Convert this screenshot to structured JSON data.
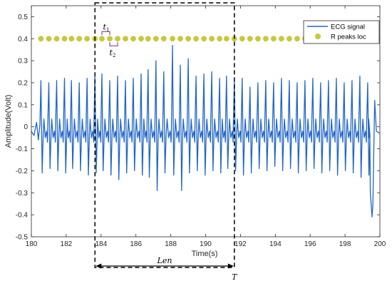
{
  "chart_data": {
    "type": "line",
    "xlabel": "Time(s)",
    "ylabel": "Amplitude(Volt)",
    "xlim": [
      180,
      200
    ],
    "ylim": [
      -0.5,
      0.55
    ],
    "xticks": [
      180,
      182,
      184,
      186,
      188,
      190,
      192,
      194,
      196,
      198,
      200
    ],
    "xtick_labels": [
      "180",
      "182",
      "184",
      "186",
      "188",
      "190",
      "192",
      "194",
      "196",
      "198",
      "200"
    ],
    "yticks": [
      -0.5,
      -0.4,
      -0.3,
      -0.2,
      -0.1,
      0,
      0.1,
      0.2,
      0.3,
      0.4,
      0.5
    ],
    "ytick_labels": [
      "-0.5",
      "-0.4",
      "-0.3",
      "-0.2",
      "-0.1",
      "0",
      "0.1",
      "0.2",
      "0.3",
      "0.4",
      "0.5"
    ],
    "legend_position": "top-right",
    "series": [
      {
        "name": "ECG signal",
        "kind": "line",
        "color": "#2166c8",
        "r_peak_times": [
          180.55,
          181.0,
          181.45,
          181.9,
          182.3,
          182.75,
          183.2,
          183.65,
          184.05,
          184.5,
          184.95,
          185.4,
          185.85,
          186.3,
          186.7,
          187.15,
          187.6,
          188.1,
          188.55,
          189.0,
          189.45,
          189.9,
          190.35,
          190.8,
          191.2,
          191.65,
          192.1,
          192.55,
          193.0,
          193.45,
          193.9,
          194.35,
          194.8,
          195.25,
          195.7,
          196.15,
          196.6,
          197.05,
          197.5,
          197.95,
          198.4,
          198.85,
          199.3
        ],
        "r_peak_values": [
          0.21,
          0.2,
          0.21,
          0.22,
          0.21,
          0.2,
          0.22,
          0.23,
          0.24,
          0.21,
          0.23,
          0.21,
          0.22,
          0.24,
          0.26,
          0.3,
          0.25,
          0.37,
          0.28,
          0.31,
          0.23,
          0.24,
          0.25,
          0.22,
          0.23,
          0.21,
          0.22,
          0.18,
          0.2,
          0.21,
          0.2,
          0.22,
          0.21,
          0.2,
          0.21,
          0.22,
          0.2,
          0.21,
          0.22,
          0.2,
          0.21,
          0.23,
          0.2
        ],
        "trough_values": [
          -0.21,
          -0.19,
          -0.2,
          -0.21,
          -0.19,
          -0.2,
          -0.22,
          -0.21,
          -0.2,
          -0.22,
          -0.24,
          -0.21,
          -0.2,
          -0.22,
          -0.23,
          -0.29,
          -0.21,
          -0.22,
          -0.29,
          -0.21,
          -0.2,
          -0.22,
          -0.2,
          -0.21,
          -0.19,
          -0.2,
          -0.22,
          -0.21,
          -0.19,
          -0.2,
          -0.18,
          -0.2,
          -0.19,
          -0.21,
          -0.2,
          -0.19,
          -0.21,
          -0.2,
          -0.22,
          -0.2,
          -0.21,
          -0.23,
          -0.22
        ],
        "end_segment": {
          "x": [
            199.45,
            199.55,
            199.6,
            199.7,
            199.8,
            200.0
          ],
          "y": [
            -0.3,
            -0.41,
            -0.35,
            0.12,
            -0.02,
            -0.03
          ]
        }
      },
      {
        "name": "R peaks loc",
        "kind": "scatter",
        "color": "#c8c83c",
        "y": 0.4,
        "x": [
          180.55,
          181.0,
          181.45,
          181.9,
          182.3,
          182.75,
          183.2,
          183.65,
          184.05,
          184.5,
          184.95,
          185.4,
          185.85,
          186.3,
          186.7,
          187.15,
          187.6,
          188.1,
          188.55,
          189.0,
          189.45,
          189.9,
          190.35,
          190.8,
          191.2,
          191.65,
          192.1,
          192.55,
          193.0,
          193.45,
          193.9,
          194.35,
          194.8,
          195.25,
          195.7,
          196.15,
          196.6,
          197.05,
          197.5,
          197.95,
          198.4,
          198.85,
          199.3
        ]
      }
    ],
    "window_box": {
      "x_start": 183.65,
      "x_end": 191.65,
      "style": "dashed"
    },
    "annotations": {
      "t1": {
        "main": "t",
        "sub": "1",
        "between": [
          184.05,
          184.5
        ]
      },
      "t2": {
        "main": "t",
        "sub": "2",
        "between": [
          184.5,
          184.95
        ]
      },
      "len": {
        "text": "Len",
        "from": 183.65,
        "to": 191.65
      },
      "T": {
        "text": "T",
        "at": 191.65
      }
    }
  }
}
